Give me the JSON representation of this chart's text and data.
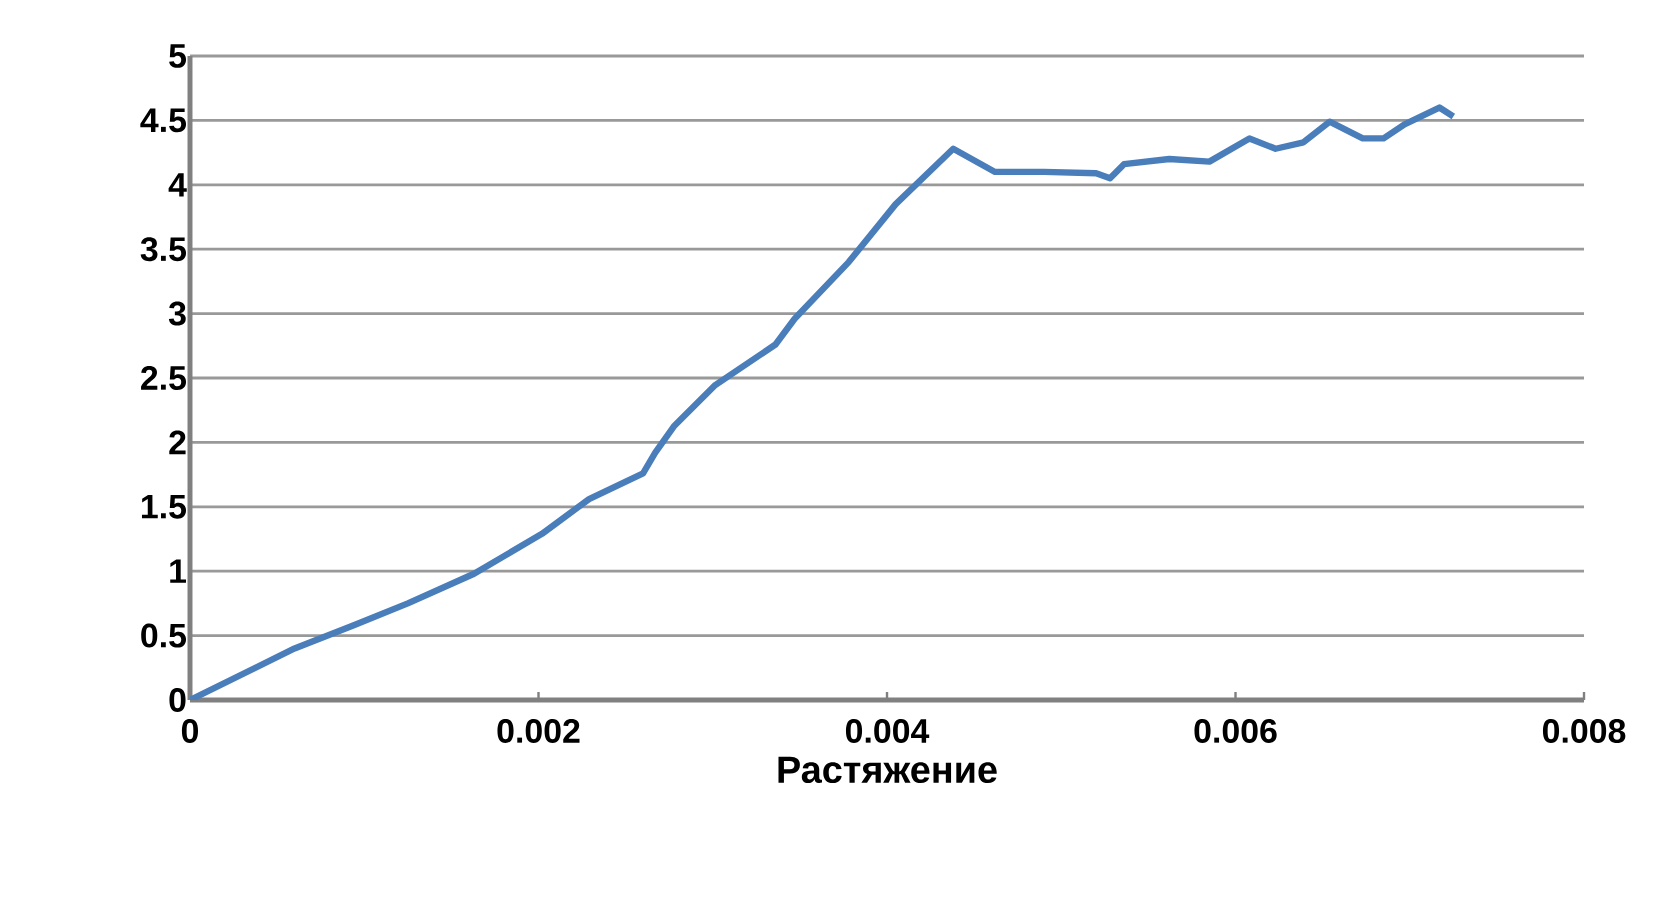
{
  "chart_data": {
    "type": "line",
    "xlabel": "Растяжение",
    "x": [
      0,
      0.0003,
      0.0006,
      0.00094,
      0.00125,
      0.00163,
      0.00202,
      0.00229,
      0.0026,
      0.00267,
      0.00278,
      0.00301,
      0.00336,
      0.00347,
      0.00378,
      0.00405,
      0.00438,
      0.00462,
      0.0049,
      0.0052,
      0.00528,
      0.00536,
      0.00562,
      0.00585,
      0.00608,
      0.00623,
      0.00639,
      0.00654,
      0.00673,
      0.00685,
      0.00697,
      0.00717,
      0.00725
    ],
    "series": [
      {
        "color": "#4a7ebb",
        "values": [
          0,
          0.2,
          0.4,
          0.58,
          0.75,
          0.98,
          1.29,
          1.56,
          1.76,
          1.92,
          2.13,
          2.44,
          2.76,
          2.96,
          3.4,
          3.85,
          4.28,
          4.1,
          4.1,
          4.09,
          4.05,
          4.16,
          4.2,
          4.18,
          4.36,
          4.28,
          4.33,
          4.49,
          4.36,
          4.36,
          4.47,
          4.6,
          4.53
        ]
      }
    ],
    "xlim": [
      0,
      0.008
    ],
    "xticks": [
      0,
      0.002,
      0.004,
      0.006,
      0.008
    ],
    "ylim": [
      0,
      5
    ],
    "yticks": [
      0,
      0.5,
      1,
      1.5,
      2,
      2.5,
      3,
      3.5,
      4,
      4.5,
      5
    ],
    "grid": "y",
    "marker": "none",
    "line_style": "solid"
  }
}
